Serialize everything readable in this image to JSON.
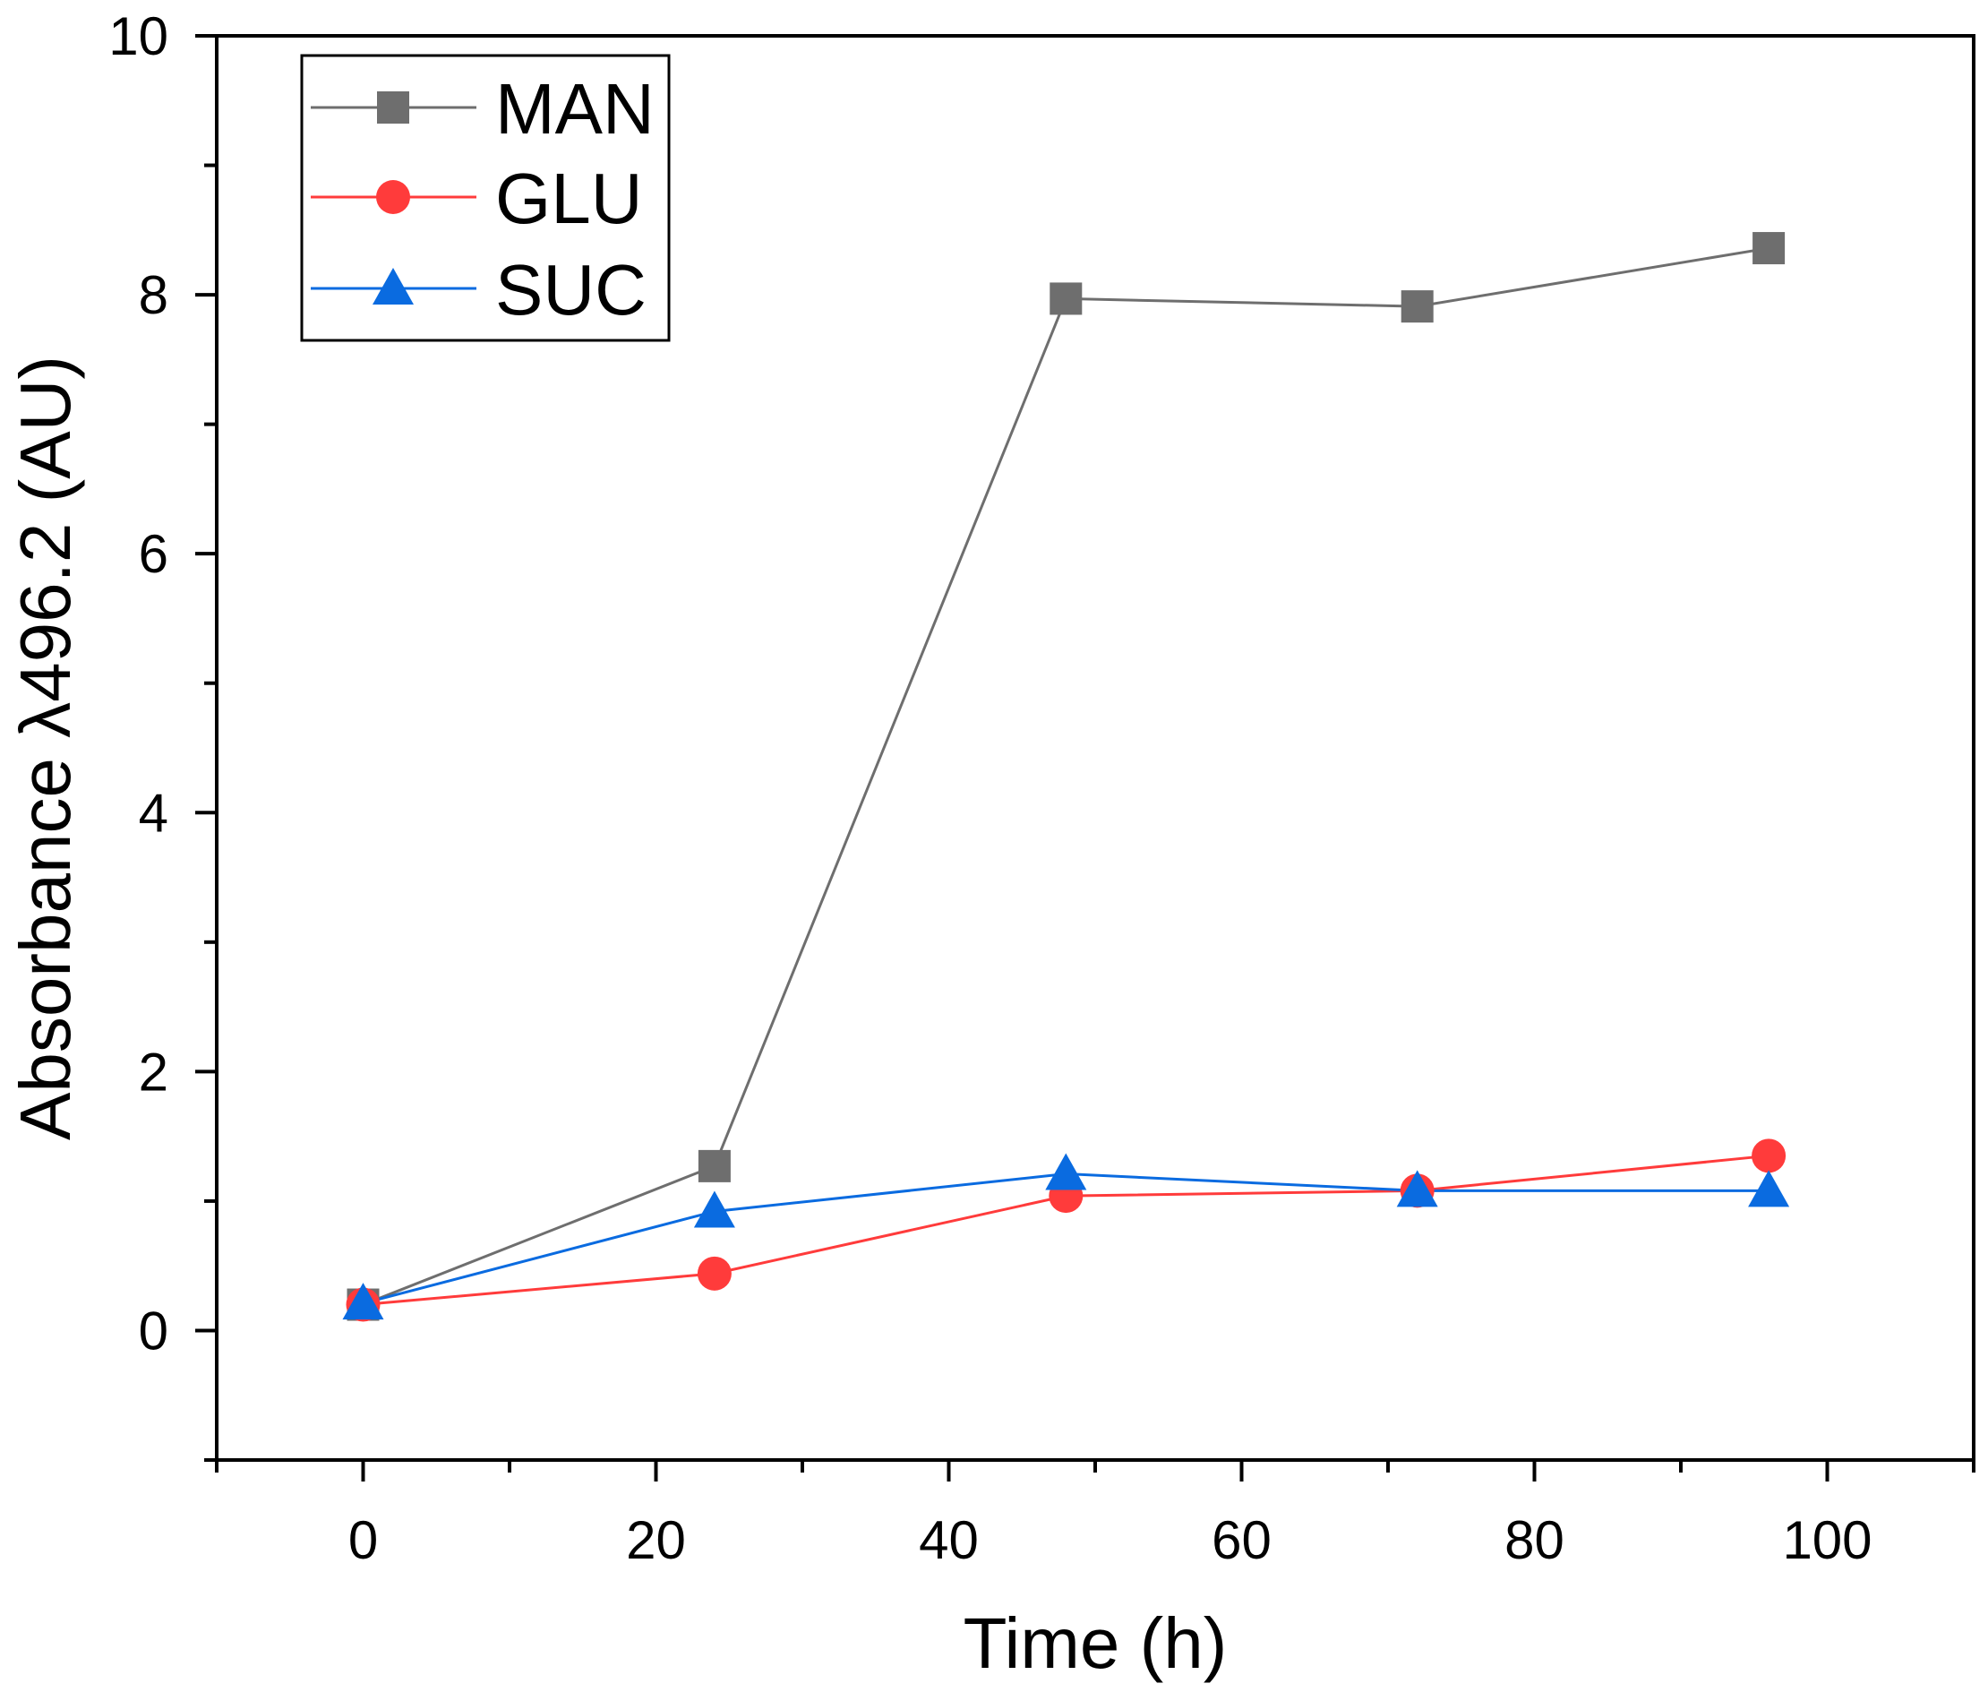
{
  "chart_data": {
    "type": "line",
    "title": "",
    "xlabel": "Time (h)",
    "ylabel": "Absorbance λ496.2 (AU)",
    "x": [
      0,
      24,
      48,
      72,
      96
    ],
    "xlim": [
      -10,
      110
    ],
    "ylim": [
      -1,
      10
    ],
    "xticks": [
      0,
      20,
      40,
      60,
      80,
      100
    ],
    "yticks": [
      0,
      2,
      4,
      6,
      8,
      10
    ],
    "grid": false,
    "legend_position": "top-left",
    "series": [
      {
        "name": "MAN",
        "marker": "square",
        "color": "#6e6e6e",
        "values": [
          0.2,
          1.27,
          7.97,
          7.91,
          8.36
        ]
      },
      {
        "name": "GLU",
        "marker": "circle",
        "color": "#ff3b3b",
        "values": [
          0.2,
          0.44,
          1.04,
          1.08,
          1.35
        ]
      },
      {
        "name": "SUC",
        "marker": "triangle",
        "color": "#0a6be0",
        "values": [
          0.21,
          0.92,
          1.21,
          1.08,
          1.08
        ]
      }
    ]
  }
}
